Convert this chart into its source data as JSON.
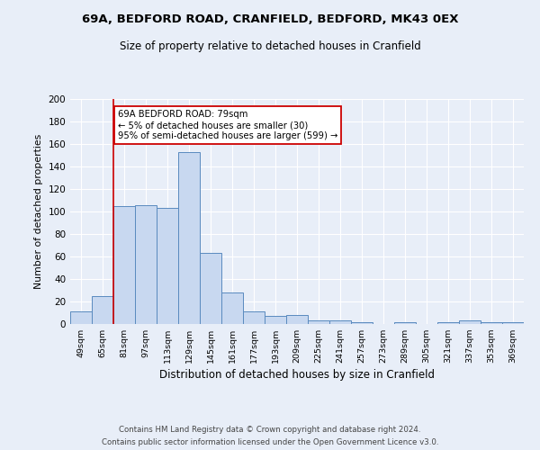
{
  "title1": "69A, BEDFORD ROAD, CRANFIELD, BEDFORD, MK43 0EX",
  "title2": "Size of property relative to detached houses in Cranfield",
  "xlabel": "Distribution of detached houses by size in Cranfield",
  "ylabel": "Number of detached properties",
  "categories": [
    "49sqm",
    "65sqm",
    "81sqm",
    "97sqm",
    "113sqm",
    "129sqm",
    "145sqm",
    "161sqm",
    "177sqm",
    "193sqm",
    "209sqm",
    "225sqm",
    "241sqm",
    "257sqm",
    "273sqm",
    "289sqm",
    "305sqm",
    "321sqm",
    "337sqm",
    "353sqm",
    "369sqm"
  ],
  "values": [
    11,
    25,
    105,
    106,
    103,
    153,
    63,
    28,
    11,
    7,
    8,
    3,
    3,
    2,
    0,
    2,
    0,
    2,
    3,
    2,
    2
  ],
  "bar_color": "#c8d8f0",
  "bar_edge_color": "#5a8abf",
  "vline_x_index": 2,
  "vline_color": "#cc0000",
  "annotation_text": "69A BEDFORD ROAD: 79sqm\n← 5% of detached houses are smaller (30)\n95% of semi-detached houses are larger (599) →",
  "annotation_box_color": "#ffffff",
  "annotation_box_edge_color": "#cc0000",
  "ylim": [
    0,
    200
  ],
  "yticks": [
    0,
    20,
    40,
    60,
    80,
    100,
    120,
    140,
    160,
    180,
    200
  ],
  "footnote1": "Contains HM Land Registry data © Crown copyright and database right 2024.",
  "footnote2": "Contains public sector information licensed under the Open Government Licence v3.0.",
  "bg_color": "#e8eef8",
  "plot_bg_color": "#e8eef8",
  "title1_fontsize": 9.5,
  "title2_fontsize": 8.5
}
